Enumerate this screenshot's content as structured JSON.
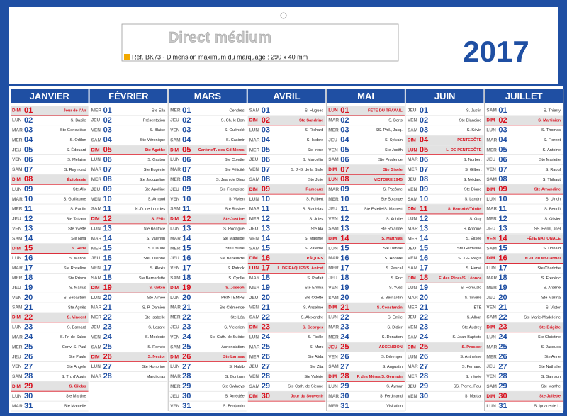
{
  "header": {
    "title": "Direct médium",
    "reference": "Réf. BK73 - Dimension maximum du marquage : 290 x 40 mm",
    "year": "2017"
  },
  "colors": {
    "frame": "#1f4fa3",
    "highlight": "#d8101e",
    "band": "#e2e2e2"
  },
  "months": [
    {
      "name": "JANVIER",
      "highlight": [
        0,
        7,
        14,
        21,
        28
      ],
      "rows": [
        [
          "DIM",
          "01",
          "Jour de l'An"
        ],
        [
          "LUN",
          "02",
          "S. Basile"
        ],
        [
          "MAR",
          "03",
          "Ste Geneviève"
        ],
        [
          "MER",
          "04",
          "S. Odilon"
        ],
        [
          "JEU",
          "05",
          "S. Édouard"
        ],
        [
          "VEN",
          "06",
          "S. Mélaine"
        ],
        [
          "SAM",
          "07",
          "S. Raymond"
        ],
        [
          "DIM",
          "08",
          "Épiphanie"
        ],
        [
          "LUN",
          "09",
          "Ste Alix"
        ],
        [
          "MAR",
          "10",
          "S. Guillaume"
        ],
        [
          "MER",
          "11",
          "S. Paulin"
        ],
        [
          "JEU",
          "12",
          "Ste Tatiana"
        ],
        [
          "VEN",
          "13",
          "Ste Yvette"
        ],
        [
          "SAM",
          "14",
          "Ste Nina"
        ],
        [
          "DIM",
          "15",
          "S. Rémi"
        ],
        [
          "LUN",
          "16",
          "S. Marcel"
        ],
        [
          "MAR",
          "17",
          "Ste Roseline"
        ],
        [
          "MER",
          "18",
          "Ste Prisca"
        ],
        [
          "JEU",
          "19",
          "S. Marius"
        ],
        [
          "VEN",
          "20",
          "S. Sébastien"
        ],
        [
          "SAM",
          "21",
          "Ste Agnès"
        ],
        [
          "DIM",
          "22",
          "S. Vincent"
        ],
        [
          "LUN",
          "23",
          "S. Barnard"
        ],
        [
          "MAR",
          "24",
          "S. Fr. de Sales"
        ],
        [
          "MER",
          "25",
          "Conv. S. Paul"
        ],
        [
          "JEU",
          "26",
          "Ste Paule"
        ],
        [
          "VEN",
          "27",
          "Ste Angèle"
        ],
        [
          "SAM",
          "28",
          "S. Th. d'Aquin"
        ],
        [
          "DIM",
          "29",
          "S. Gildas"
        ],
        [
          "LUN",
          "30",
          "Ste Martine"
        ],
        [
          "MAR",
          "31",
          "Ste Marcelle"
        ]
      ]
    },
    {
      "name": "FÉVRIER",
      "highlight": [
        4,
        11,
        18,
        25
      ],
      "rows": [
        [
          "MER",
          "01",
          "Ste Ella"
        ],
        [
          "JEU",
          "02",
          "Présentation"
        ],
        [
          "VEN",
          "03",
          "S. Blaise"
        ],
        [
          "SAM",
          "04",
          "Ste Véronique"
        ],
        [
          "DIM",
          "05",
          "Ste Agathe"
        ],
        [
          "LUN",
          "06",
          "S. Gaston"
        ],
        [
          "MAR",
          "07",
          "Ste Eugénie"
        ],
        [
          "MER",
          "08",
          "Ste Jacqueline"
        ],
        [
          "JEU",
          "09",
          "Ste Apolline"
        ],
        [
          "VEN",
          "10",
          "S. Arnaud"
        ],
        [
          "SAM",
          "11",
          "N.-D. de Lourdes"
        ],
        [
          "DIM",
          "12",
          "S. Félix"
        ],
        [
          "LUN",
          "13",
          "Ste Béatrice"
        ],
        [
          "MAR",
          "14",
          "S. Valentin"
        ],
        [
          "MER",
          "15",
          "S. Claude"
        ],
        [
          "JEU",
          "16",
          "Ste Julienne"
        ],
        [
          "VEN",
          "17",
          "S. Alexis"
        ],
        [
          "SAM",
          "18",
          "Ste Bernadette"
        ],
        [
          "DIM",
          "19",
          "S. Gabin"
        ],
        [
          "LUN",
          "20",
          "Ste Aimée"
        ],
        [
          "MAR",
          "21",
          "S. P. Damien"
        ],
        [
          "MER",
          "22",
          "Ste Isabelle"
        ],
        [
          "JEU",
          "23",
          "S. Lazare"
        ],
        [
          "VEN",
          "24",
          "S. Modeste"
        ],
        [
          "SAM",
          "25",
          "S. Roméo"
        ],
        [
          "DIM",
          "26",
          "S. Nestor"
        ],
        [
          "LUN",
          "27",
          "Ste Honorine"
        ],
        [
          "MAR",
          "28",
          "Mardi gras"
        ]
      ]
    },
    {
      "name": "MARS",
      "highlight": [
        4,
        11,
        18,
        25
      ],
      "rows": [
        [
          "MER",
          "01",
          "Cendres"
        ],
        [
          "JEU",
          "02",
          "S. Ch. le Bon"
        ],
        [
          "VEN",
          "03",
          "S. Guénolé"
        ],
        [
          "SAM",
          "04",
          "S. Casimir"
        ],
        [
          "DIM",
          "05",
          "Carême/F. des Gd-Mères"
        ],
        [
          "LUN",
          "06",
          "Ste Colette"
        ],
        [
          "MAR",
          "07",
          "Ste Félicité"
        ],
        [
          "MER",
          "08",
          "S. Jean de Dieu"
        ],
        [
          "JEU",
          "09",
          "Ste Françoise"
        ],
        [
          "VEN",
          "10",
          "S. Vivien"
        ],
        [
          "SAM",
          "11",
          "Ste Rosine"
        ],
        [
          "DIM",
          "12",
          "Ste Justine"
        ],
        [
          "LUN",
          "13",
          "S. Rodrigue"
        ],
        [
          "MAR",
          "14",
          "Ste Mathilde"
        ],
        [
          "MER",
          "15",
          "Ste Louise"
        ],
        [
          "JEU",
          "16",
          "Ste Bénédicte"
        ],
        [
          "VEN",
          "17",
          "S. Patrick"
        ],
        [
          "SAM",
          "18",
          "S. Cyrille"
        ],
        [
          "DIM",
          "19",
          "S. Joseph"
        ],
        [
          "LUN",
          "20",
          "PRINTEMPS"
        ],
        [
          "MAR",
          "21",
          "Ste Clémence"
        ],
        [
          "MER",
          "22",
          "Ste Léa"
        ],
        [
          "JEU",
          "23",
          "S. Victorien"
        ],
        [
          "VEN",
          "24",
          "Ste Cath. de Suède"
        ],
        [
          "SAM",
          "25",
          "Annonciation"
        ],
        [
          "DIM",
          "26",
          "Ste Larissa"
        ],
        [
          "LUN",
          "27",
          "S. Habib"
        ],
        [
          "MAR",
          "28",
          "S. Gontran"
        ],
        [
          "MER",
          "29",
          "Ste Gwladys"
        ],
        [
          "JEU",
          "30",
          "S. Amédée"
        ],
        [
          "VEN",
          "31",
          "S. Benjamin"
        ]
      ]
    },
    {
      "name": "AVRIL",
      "highlight": [
        1,
        8,
        15,
        16,
        22,
        29
      ],
      "rows": [
        [
          "SAM",
          "01",
          "S. Hugues"
        ],
        [
          "DIM",
          "02",
          "Ste Sandrine"
        ],
        [
          "LUN",
          "03",
          "S. Richard"
        ],
        [
          "MAR",
          "04",
          "S. Isidore"
        ],
        [
          "MER",
          "05",
          "Ste Irène"
        ],
        [
          "JEU",
          "06",
          "S. Marcellin"
        ],
        [
          "VEN",
          "07",
          "S. J.-B. de la Salle"
        ],
        [
          "SAM",
          "08",
          "Ste Julie"
        ],
        [
          "DIM",
          "09",
          "Rameaux"
        ],
        [
          "LUN",
          "10",
          "S. Fulbert"
        ],
        [
          "MAR",
          "11",
          "S. Stanislas"
        ],
        [
          "MER",
          "12",
          "S. Jules"
        ],
        [
          "JEU",
          "13",
          "Ste Ida"
        ],
        [
          "VEN",
          "14",
          "S. Maxime"
        ],
        [
          "SAM",
          "15",
          "S. Paterne"
        ],
        [
          "DIM",
          "16",
          "PÂQUES"
        ],
        [
          "LUN",
          "17",
          "L. DE PÂQUES/S. Anicet"
        ],
        [
          "MAR",
          "18",
          "S. Parfait"
        ],
        [
          "MER",
          "19",
          "Ste Emma"
        ],
        [
          "JEU",
          "20",
          "Ste Odette"
        ],
        [
          "VEN",
          "21",
          "S. Anselme"
        ],
        [
          "SAM",
          "22",
          "S. Alexandre"
        ],
        [
          "DIM",
          "23",
          "S. Georges"
        ],
        [
          "LUN",
          "24",
          "S. Fidèle"
        ],
        [
          "MAR",
          "25",
          "S. Marc"
        ],
        [
          "MER",
          "26",
          "Ste Alida"
        ],
        [
          "JEU",
          "27",
          "Ste Zita"
        ],
        [
          "VEN",
          "28",
          "Ste Valérie"
        ],
        [
          "SAM",
          "29",
          "Ste Cath. de Sienne"
        ],
        [
          "DIM",
          "30",
          "Jour du Souvenir"
        ]
      ]
    },
    {
      "name": "MAI",
      "highlight": [
        0,
        6,
        7,
        13,
        20,
        24,
        27
      ],
      "rows": [
        [
          "LUN",
          "01",
          "FÊTE DU TRAVAIL"
        ],
        [
          "MAR",
          "02",
          "S. Boris"
        ],
        [
          "MER",
          "03",
          "SS. Phil., Jacq."
        ],
        [
          "JEU",
          "04",
          "S. Sylvain"
        ],
        [
          "VEN",
          "05",
          "Ste Judith"
        ],
        [
          "SAM",
          "06",
          "Ste Prudence"
        ],
        [
          "DIM",
          "07",
          "Ste Gisèle"
        ],
        [
          "LUN",
          "08",
          "VICTOIRE 1945"
        ],
        [
          "MAR",
          "09",
          "S. Pacôme"
        ],
        [
          "MER",
          "10",
          "Ste Solange"
        ],
        [
          "JEU",
          "11",
          "Ste Estelle/S. Mamert"
        ],
        [
          "VEN",
          "12",
          "S. Achille"
        ],
        [
          "SAM",
          "13",
          "Ste Rolande"
        ],
        [
          "DIM",
          "14",
          "S. Matthias"
        ],
        [
          "LUN",
          "15",
          "Ste Denise"
        ],
        [
          "MAR",
          "16",
          "S. Honoré"
        ],
        [
          "MER",
          "17",
          "S. Pascal"
        ],
        [
          "JEU",
          "18",
          "S. Éric"
        ],
        [
          "VEN",
          "19",
          "S. Yves"
        ],
        [
          "SAM",
          "20",
          "S. Bernardin"
        ],
        [
          "DIM",
          "21",
          "S. Constantin"
        ],
        [
          "LUN",
          "22",
          "S. Émile"
        ],
        [
          "MAR",
          "23",
          "S. Didier"
        ],
        [
          "MER",
          "24",
          "S. Donatien"
        ],
        [
          "JEU",
          "25",
          "ASCENSION"
        ],
        [
          "VEN",
          "26",
          "S. Bérenger"
        ],
        [
          "SAM",
          "27",
          "S. Augustin"
        ],
        [
          "DIM",
          "28",
          "F. des Mères/S. Germain"
        ],
        [
          "LUN",
          "29",
          "S. Aymar"
        ],
        [
          "MAR",
          "30",
          "S. Ferdinand"
        ],
        [
          "MER",
          "31",
          "Visitation"
        ]
      ]
    },
    {
      "name": "JUIN",
      "highlight": [
        3,
        4,
        10,
        17,
        24
      ],
      "rows": [
        [
          "JEU",
          "01",
          "S. Justin"
        ],
        [
          "VEN",
          "02",
          "Ste Blandine"
        ],
        [
          "SAM",
          "03",
          "S. Kévin"
        ],
        [
          "DIM",
          "04",
          "PENTECÔTE"
        ],
        [
          "LUN",
          "05",
          "L. DE PENTECÔTE"
        ],
        [
          "MAR",
          "06",
          "S. Norbert"
        ],
        [
          "MER",
          "07",
          "S. Gilbert"
        ],
        [
          "JEU",
          "08",
          "S. Médard"
        ],
        [
          "VEN",
          "09",
          "Ste Diane"
        ],
        [
          "SAM",
          "10",
          "S. Landry"
        ],
        [
          "DIM",
          "11",
          "S. Barnabé/Trinité"
        ],
        [
          "LUN",
          "12",
          "S. Guy"
        ],
        [
          "MAR",
          "13",
          "S. Antoine"
        ],
        [
          "MER",
          "14",
          "S. Élisée"
        ],
        [
          "JEU",
          "15",
          "Ste Germaine"
        ],
        [
          "VEN",
          "16",
          "S. J.-F. Régis"
        ],
        [
          "SAM",
          "17",
          "S. Hervé"
        ],
        [
          "DIM",
          "18",
          "F. des Pères/S. Léonce"
        ],
        [
          "LUN",
          "19",
          "S. Romuald"
        ],
        [
          "MAR",
          "20",
          "S. Silvère"
        ],
        [
          "MER",
          "21",
          "ÉTÉ"
        ],
        [
          "JEU",
          "22",
          "S. Alban"
        ],
        [
          "VEN",
          "23",
          "Ste Audrey"
        ],
        [
          "SAM",
          "24",
          "S. Jean-Baptiste"
        ],
        [
          "DIM",
          "25",
          "S. Prosper"
        ],
        [
          "LUN",
          "26",
          "S. Anthelme"
        ],
        [
          "MAR",
          "27",
          "S. Fernand"
        ],
        [
          "MER",
          "28",
          "S. Irénée"
        ],
        [
          "JEU",
          "29",
          "SS. Pierre, Paul"
        ],
        [
          "VEN",
          "30",
          "S. Martial"
        ]
      ]
    },
    {
      "name": "JUILLET",
      "highlight": [
        1,
        8,
        13,
        15,
        22,
        29
      ],
      "rows": [
        [
          "SAM",
          "01",
          "S. Thierry"
        ],
        [
          "DIM",
          "02",
          "S. Martinien"
        ],
        [
          "LUN",
          "03",
          "S. Thomas"
        ],
        [
          "MAR",
          "04",
          "S. Florent"
        ],
        [
          "MER",
          "05",
          "S. Antoine"
        ],
        [
          "JEU",
          "06",
          "Ste Mariette"
        ],
        [
          "VEN",
          "07",
          "S. Raoul"
        ],
        [
          "SAM",
          "08",
          "S. Thibaut"
        ],
        [
          "DIM",
          "09",
          "Ste Amandine"
        ],
        [
          "LUN",
          "10",
          "S. Ulrich"
        ],
        [
          "MAR",
          "11",
          "S. Benoît"
        ],
        [
          "MER",
          "12",
          "S. Olivier"
        ],
        [
          "JEU",
          "13",
          "SS. Henri, Joël"
        ],
        [
          "VEN",
          "14",
          "FÊTE NATIONALE"
        ],
        [
          "SAM",
          "15",
          "S. Donald"
        ],
        [
          "DIM",
          "16",
          "N.-D. du Mt-Carmel"
        ],
        [
          "LUN",
          "17",
          "Ste Charlotte"
        ],
        [
          "MAR",
          "18",
          "S. Frédéric"
        ],
        [
          "MER",
          "19",
          "S. Arsène"
        ],
        [
          "JEU",
          "20",
          "Ste Marina"
        ],
        [
          "VEN",
          "21",
          "S. Victor"
        ],
        [
          "SAM",
          "22",
          "Ste Marie-Madeleine"
        ],
        [
          "DIM",
          "23",
          "Ste Brigitte"
        ],
        [
          "LUN",
          "24",
          "Ste Christine"
        ],
        [
          "MAR",
          "25",
          "S. Jacques"
        ],
        [
          "MER",
          "26",
          "Ste Anne"
        ],
        [
          "JEU",
          "27",
          "Ste Nathalie"
        ],
        [
          "VEN",
          "28",
          "S. Samson"
        ],
        [
          "SAM",
          "29",
          "Ste Marthe"
        ],
        [
          "DIM",
          "30",
          "Ste Juliette"
        ],
        [
          "LUN",
          "31",
          "S. Ignace de L."
        ]
      ]
    }
  ]
}
